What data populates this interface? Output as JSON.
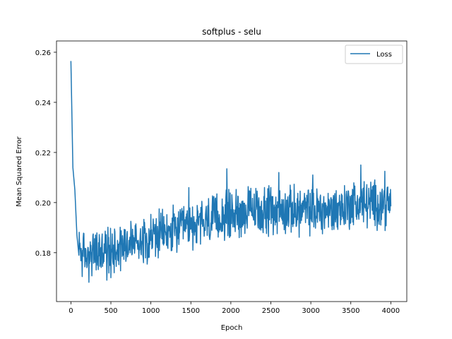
{
  "chart_data": {
    "type": "line",
    "title": "softplus - selu",
    "xlabel": "Epoch",
    "ylabel": "Mean Squared Error",
    "xlim": [
      -180,
      4200
    ],
    "ylim": [
      0.1605,
      0.2645
    ],
    "xticks": [
      0,
      500,
      1000,
      1500,
      2000,
      2500,
      3000,
      3500,
      4000
    ],
    "xtick_labels": [
      "0",
      "500",
      "1000",
      "1500",
      "2000",
      "2500",
      "3000",
      "3500",
      "4000"
    ],
    "yticks": [
      0.18,
      0.2,
      0.22,
      0.24,
      0.26
    ],
    "ytick_labels": [
      "0.18",
      "0.20",
      "0.22",
      "0.24",
      "0.26"
    ],
    "grid": false,
    "legend": {
      "position": "top-right",
      "entries": [
        "Loss"
      ]
    },
    "series": [
      {
        "name": "Loss",
        "color": "#1f77b4",
        "x_start": 0,
        "x_end": 4000,
        "x_step": 25,
        "trend_y": [
          0.2565,
          0.205,
          0.195,
          0.188,
          0.1815,
          0.18,
          0.179,
          0.1785,
          0.1785,
          0.1788,
          0.179,
          0.1795,
          0.18,
          0.18,
          0.18,
          0.1802,
          0.1805,
          0.1808,
          0.181,
          0.1812,
          0.1815,
          0.182,
          0.1825,
          0.1828,
          0.183,
          0.1832,
          0.1835,
          0.1838,
          0.184,
          0.184,
          0.1842,
          0.1845,
          0.1848,
          0.185,
          0.1852,
          0.1855,
          0.1855,
          0.1858,
          0.186,
          0.1862,
          0.1865,
          0.1865,
          0.1868,
          0.187,
          0.187,
          0.1872,
          0.1875,
          0.1875,
          0.1878,
          0.188,
          0.1882,
          0.1885,
          0.1885,
          0.1888,
          0.189,
          0.1892,
          0.1895,
          0.1897,
          0.19,
          0.1902,
          0.1905,
          0.1908,
          0.191,
          0.1912,
          0.1915,
          0.1918,
          0.192,
          0.1922,
          0.1925,
          0.1928,
          0.193,
          0.1932,
          0.1935,
          0.1938,
          0.194,
          0.1942,
          0.1945,
          0.1948,
          0.195,
          0.1952,
          0.1955,
          0.1958,
          0.196,
          0.196,
          0.1962,
          0.1962,
          0.1962,
          0.1964,
          0.1965,
          0.1965,
          0.1965,
          0.1966,
          0.1966,
          0.1966,
          0.1967,
          0.1967,
          0.1967,
          0.1968,
          0.1968,
          0.1968,
          0.1968,
          0.1968,
          0.1968,
          0.1968,
          0.1968,
          0.1968,
          0.1968,
          0.1968,
          0.1968,
          0.1968,
          0.1968,
          0.1968,
          0.1968,
          0.1968,
          0.1968,
          0.1968,
          0.1968,
          0.1968,
          0.1968,
          0.1968,
          0.1968,
          0.1968,
          0.1968,
          0.1968,
          0.1968,
          0.1968,
          0.1968,
          0.1968,
          0.1968,
          0.1968,
          0.1968,
          0.197,
          0.1972,
          0.1975,
          0.1978,
          0.198,
          0.1982,
          0.1985,
          0.1988,
          0.199,
          0.1992,
          0.1995,
          0.1995,
          0.1995,
          0.1995,
          0.1995,
          0.1995,
          0.1995,
          0.1995,
          0.1995,
          0.1995,
          0.1995,
          0.1995,
          0.1995,
          0.1995,
          0.1995,
          0.1995,
          0.1995,
          0.1995,
          0.1995,
          0.1985
        ],
        "noise_amplitude": 0.0075,
        "spikes": [
          [
            0,
            0.2565
          ],
          [
            25,
            0.214
          ],
          [
            50,
            0.205
          ],
          [
            75,
            0.187
          ],
          [
            100,
            0.179
          ],
          [
            450,
            0.169
          ],
          [
            500,
            0.17
          ],
          [
            1475,
            0.206
          ],
          [
            1950,
            0.2135
          ],
          [
            2600,
            0.212
          ],
          [
            3025,
            0.211
          ],
          [
            3625,
            0.215
          ],
          [
            3925,
            0.2125
          ],
          [
            4000,
            0.1985
          ]
        ]
      }
    ]
  }
}
